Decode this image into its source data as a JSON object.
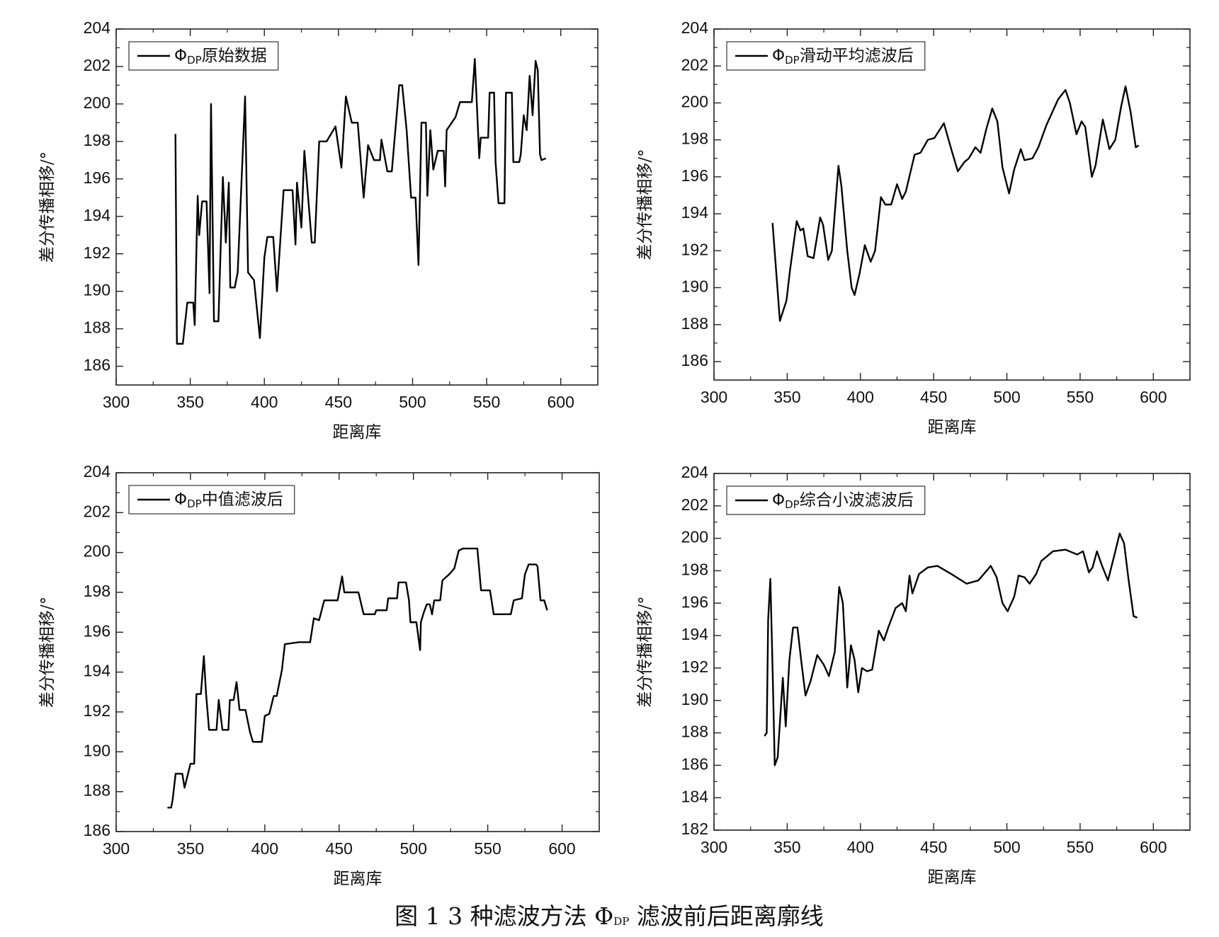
{
  "caption": "图 1 3 种滤波方法 ΦDP 滤波前后距离廓线",
  "chart_data": [
    {
      "type": "line",
      "xlabel": "距离库",
      "ylabel": "差分传播相移/°",
      "legend": "upper left",
      "xlim": [
        300,
        625
      ],
      "xticks": [
        300,
        350,
        400,
        450,
        500,
        550,
        600
      ],
      "ylim": [
        185,
        204
      ],
      "yticks": [
        186,
        188,
        190,
        192,
        194,
        196,
        198,
        200,
        202,
        204
      ],
      "x": [
        340,
        341,
        345,
        348,
        352,
        353,
        355,
        356,
        358,
        361,
        363,
        364,
        366,
        369,
        370,
        372,
        374,
        376,
        377,
        380,
        382,
        387,
        389,
        393,
        397,
        400,
        402,
        406,
        408.5,
        413,
        419,
        421,
        422,
        425,
        427,
        432,
        434,
        437,
        442,
        448,
        452,
        455,
        459,
        463,
        467,
        470,
        474,
        478,
        479,
        483,
        486,
        491,
        493,
        496,
        499,
        502,
        504,
        506,
        509,
        510,
        512,
        514,
        517,
        521,
        522,
        523,
        529,
        532,
        540,
        542,
        545,
        546,
        551,
        552,
        555,
        556,
        558,
        562,
        563,
        567,
        568,
        572,
        573,
        575,
        577,
        579,
        581,
        583,
        584.5,
        586,
        587,
        590
      ],
      "series": [
        {
          "name": "ΦDP原始数据",
          "color": "#000000",
          "values": [
            198.4,
            187.2,
            187.2,
            189.4,
            189.4,
            188.2,
            195.1,
            193,
            194.8,
            194.8,
            189.9,
            200,
            188.4,
            188.4,
            191,
            196.1,
            192.6,
            195.8,
            190.2,
            190.2,
            191,
            200.4,
            191,
            190.6,
            187.5,
            191.8,
            192.9,
            192.9,
            190,
            195.4,
            195.4,
            192.5,
            195.8,
            193.4,
            197.5,
            192.6,
            192.6,
            198,
            198,
            198.8,
            196.6,
            200.4,
            199,
            199,
            195,
            197.8,
            197,
            197,
            198.1,
            196.4,
            196.4,
            201,
            201,
            198.6,
            195,
            195,
            191.4,
            199,
            199,
            195.1,
            198.6,
            196.5,
            197.5,
            197.5,
            195.6,
            198.6,
            199.3,
            200.1,
            200.1,
            202.4,
            197.1,
            198.2,
            198.2,
            200.6,
            200.6,
            196.9,
            194.7,
            194.7,
            200.6,
            200.6,
            196.9,
            196.9,
            197.3,
            199.4,
            198.6,
            201.5,
            199.4,
            202.3,
            201.8,
            197.3,
            197,
            197.1
          ]
        }
      ]
    },
    {
      "type": "line",
      "xlabel": "距离库",
      "ylabel": "差分传播相移/°",
      "legend": "upper left",
      "xlim": [
        300,
        625
      ],
      "xticks": [
        300,
        350,
        400,
        450,
        500,
        550,
        600
      ],
      "ylim": [
        185,
        204
      ],
      "yticks": [
        186,
        188,
        190,
        192,
        194,
        196,
        198,
        200,
        202,
        204
      ],
      "x": [
        340,
        345,
        349.5,
        352,
        356.5,
        359,
        361,
        364,
        368,
        372.5,
        374.5,
        378,
        380.5,
        385,
        387,
        391,
        394,
        396,
        399.5,
        403,
        407,
        410,
        414,
        417,
        421,
        425,
        428.5,
        431,
        437,
        441,
        446,
        450.5,
        457,
        462,
        466.5,
        471,
        474,
        478.5,
        482,
        486,
        490,
        493.5,
        497,
        501.5,
        505,
        509.5,
        512,
        517.5,
        521.5,
        527,
        535,
        540,
        543,
        547.5,
        551,
        553.5,
        558,
        560.5,
        565.5,
        570,
        574,
        578,
        581,
        584.5,
        588,
        590
      ],
      "series": [
        {
          "name": "ΦDP滑动平均滤波后",
          "color": "#000000",
          "values": [
            193.5,
            188.2,
            189.3,
            191,
            193.6,
            193.1,
            193.2,
            191.7,
            191.6,
            193.8,
            193.4,
            191.5,
            192,
            196.6,
            195.5,
            192,
            190,
            189.6,
            190.8,
            192.3,
            191.4,
            192,
            194.9,
            194.5,
            194.5,
            195.6,
            194.8,
            195.2,
            197.2,
            197.3,
            198,
            198.1,
            198.9,
            197.5,
            196.3,
            196.8,
            197,
            197.6,
            197.3,
            198.6,
            199.7,
            199,
            196.5,
            195.1,
            196.4,
            197.5,
            196.9,
            197,
            197.6,
            198.8,
            200.2,
            200.7,
            200,
            198.3,
            199,
            198.7,
            196,
            196.6,
            199.1,
            197.5,
            198,
            199.8,
            200.9,
            199.5,
            197.6,
            197.7
          ]
        }
      ]
    },
    {
      "type": "line",
      "xlabel": "距离库",
      "ylabel": "差分传播相移/°",
      "legend": "upper left",
      "xlim": [
        300,
        625
      ],
      "xticks": [
        300,
        350,
        400,
        450,
        500,
        550,
        600
      ],
      "ylim": [
        186,
        204
      ],
      "yticks": [
        186,
        188,
        190,
        192,
        194,
        196,
        198,
        200,
        202,
        204
      ],
      "x": [
        334.5,
        337,
        338,
        340,
        344.5,
        346,
        350,
        352.5,
        354,
        357,
        359,
        360.5,
        362.5,
        367.5,
        369,
        371.5,
        375.5,
        376.5,
        379,
        381,
        383,
        387,
        390,
        392,
        398,
        400,
        403,
        406,
        408,
        411.5,
        413.5,
        423,
        430.5,
        433,
        436.5,
        440,
        449,
        452,
        453.5,
        463,
        466.5,
        474,
        475,
        482,
        483,
        489,
        490,
        495,
        497,
        498,
        502,
        504.5,
        505,
        507,
        509,
        511,
        512.5,
        514,
        518,
        519.5,
        524,
        527.5,
        530.5,
        533.5,
        543,
        545.5,
        551.5,
        554,
        565.5,
        567.5,
        573,
        575,
        577.5,
        582.5,
        583.5,
        585.5,
        588,
        590
      ],
      "series": [
        {
          "name": "ΦDP中值滤波后",
          "color": "#000000",
          "values": [
            187.2,
            187.2,
            187.6,
            188.9,
            188.9,
            188.2,
            189.4,
            189.4,
            192.9,
            192.9,
            194.8,
            192.9,
            191.1,
            191.1,
            192.6,
            191.1,
            191.1,
            192.6,
            192.6,
            193.5,
            192.1,
            192.1,
            191,
            190.5,
            190.5,
            191.8,
            191.9,
            192.8,
            192.8,
            194.1,
            195.4,
            195.5,
            195.5,
            196.7,
            196.6,
            197.6,
            197.6,
            198.8,
            198,
            198,
            196.9,
            196.9,
            197.1,
            197.1,
            197.7,
            197.7,
            198.5,
            198.5,
            197.6,
            196.5,
            196.5,
            195.1,
            196.5,
            197,
            197.4,
            197.4,
            196.9,
            197.6,
            197.6,
            198.6,
            198.9,
            199.2,
            200.1,
            200.2,
            200.2,
            198.1,
            198.1,
            196.9,
            196.9,
            197.6,
            197.7,
            198.9,
            199.4,
            199.4,
            199.3,
            197.6,
            197.6,
            197.1
          ]
        }
      ]
    },
    {
      "type": "line",
      "xlabel": "距离库",
      "ylabel": "差分传播相移/°",
      "legend": "upper left",
      "xlim": [
        300,
        625
      ],
      "xticks": [
        300,
        350,
        400,
        450,
        500,
        550,
        600
      ],
      "ylim": [
        182,
        204
      ],
      "yticks": [
        182,
        184,
        186,
        188,
        190,
        192,
        194,
        196,
        198,
        200,
        202,
        204
      ],
      "x": [
        334.5,
        336,
        337,
        338.5,
        340,
        341.5,
        343.5,
        347,
        349,
        351.5,
        354,
        357,
        359.5,
        362.5,
        366,
        370.5,
        375,
        378.5,
        382.5,
        385.5,
        388,
        391,
        393.5,
        396,
        398.5,
        401,
        404.5,
        408,
        412.5,
        416,
        419,
        424,
        428.5,
        431,
        433.5,
        435.5,
        440,
        446,
        452.5,
        462,
        472.5,
        480.5,
        489,
        493,
        497,
        500.5,
        505,
        508,
        512,
        515.5,
        520,
        523.5,
        531.5,
        540,
        548,
        552,
        556,
        558.5,
        561.5,
        565,
        569,
        573.5,
        577,
        580,
        583,
        586.5,
        589
      ],
      "series": [
        {
          "name": "ΦDP综合小波滤波后",
          "color": "#000000",
          "values": [
            187.8,
            188,
            195,
            197.5,
            192,
            186,
            186.5,
            191.4,
            188.4,
            192.5,
            194.5,
            194.5,
            192.5,
            190.3,
            191.2,
            192.8,
            192.2,
            191.5,
            193,
            197,
            196,
            190.8,
            193.4,
            192.5,
            190.5,
            192,
            191.8,
            191.9,
            194.3,
            193.7,
            194.5,
            195.7,
            196,
            195.5,
            197.7,
            196.6,
            197.8,
            198.2,
            198.3,
            197.8,
            197.2,
            197.4,
            198.3,
            197.6,
            196,
            195.5,
            196.4,
            197.7,
            197.6,
            197.2,
            197.8,
            198.6,
            199.2,
            199.3,
            199,
            199.2,
            197.9,
            198.2,
            199.2,
            198.3,
            197.4,
            199,
            200.3,
            199.7,
            197.5,
            195.2,
            195.1
          ]
        }
      ]
    }
  ]
}
